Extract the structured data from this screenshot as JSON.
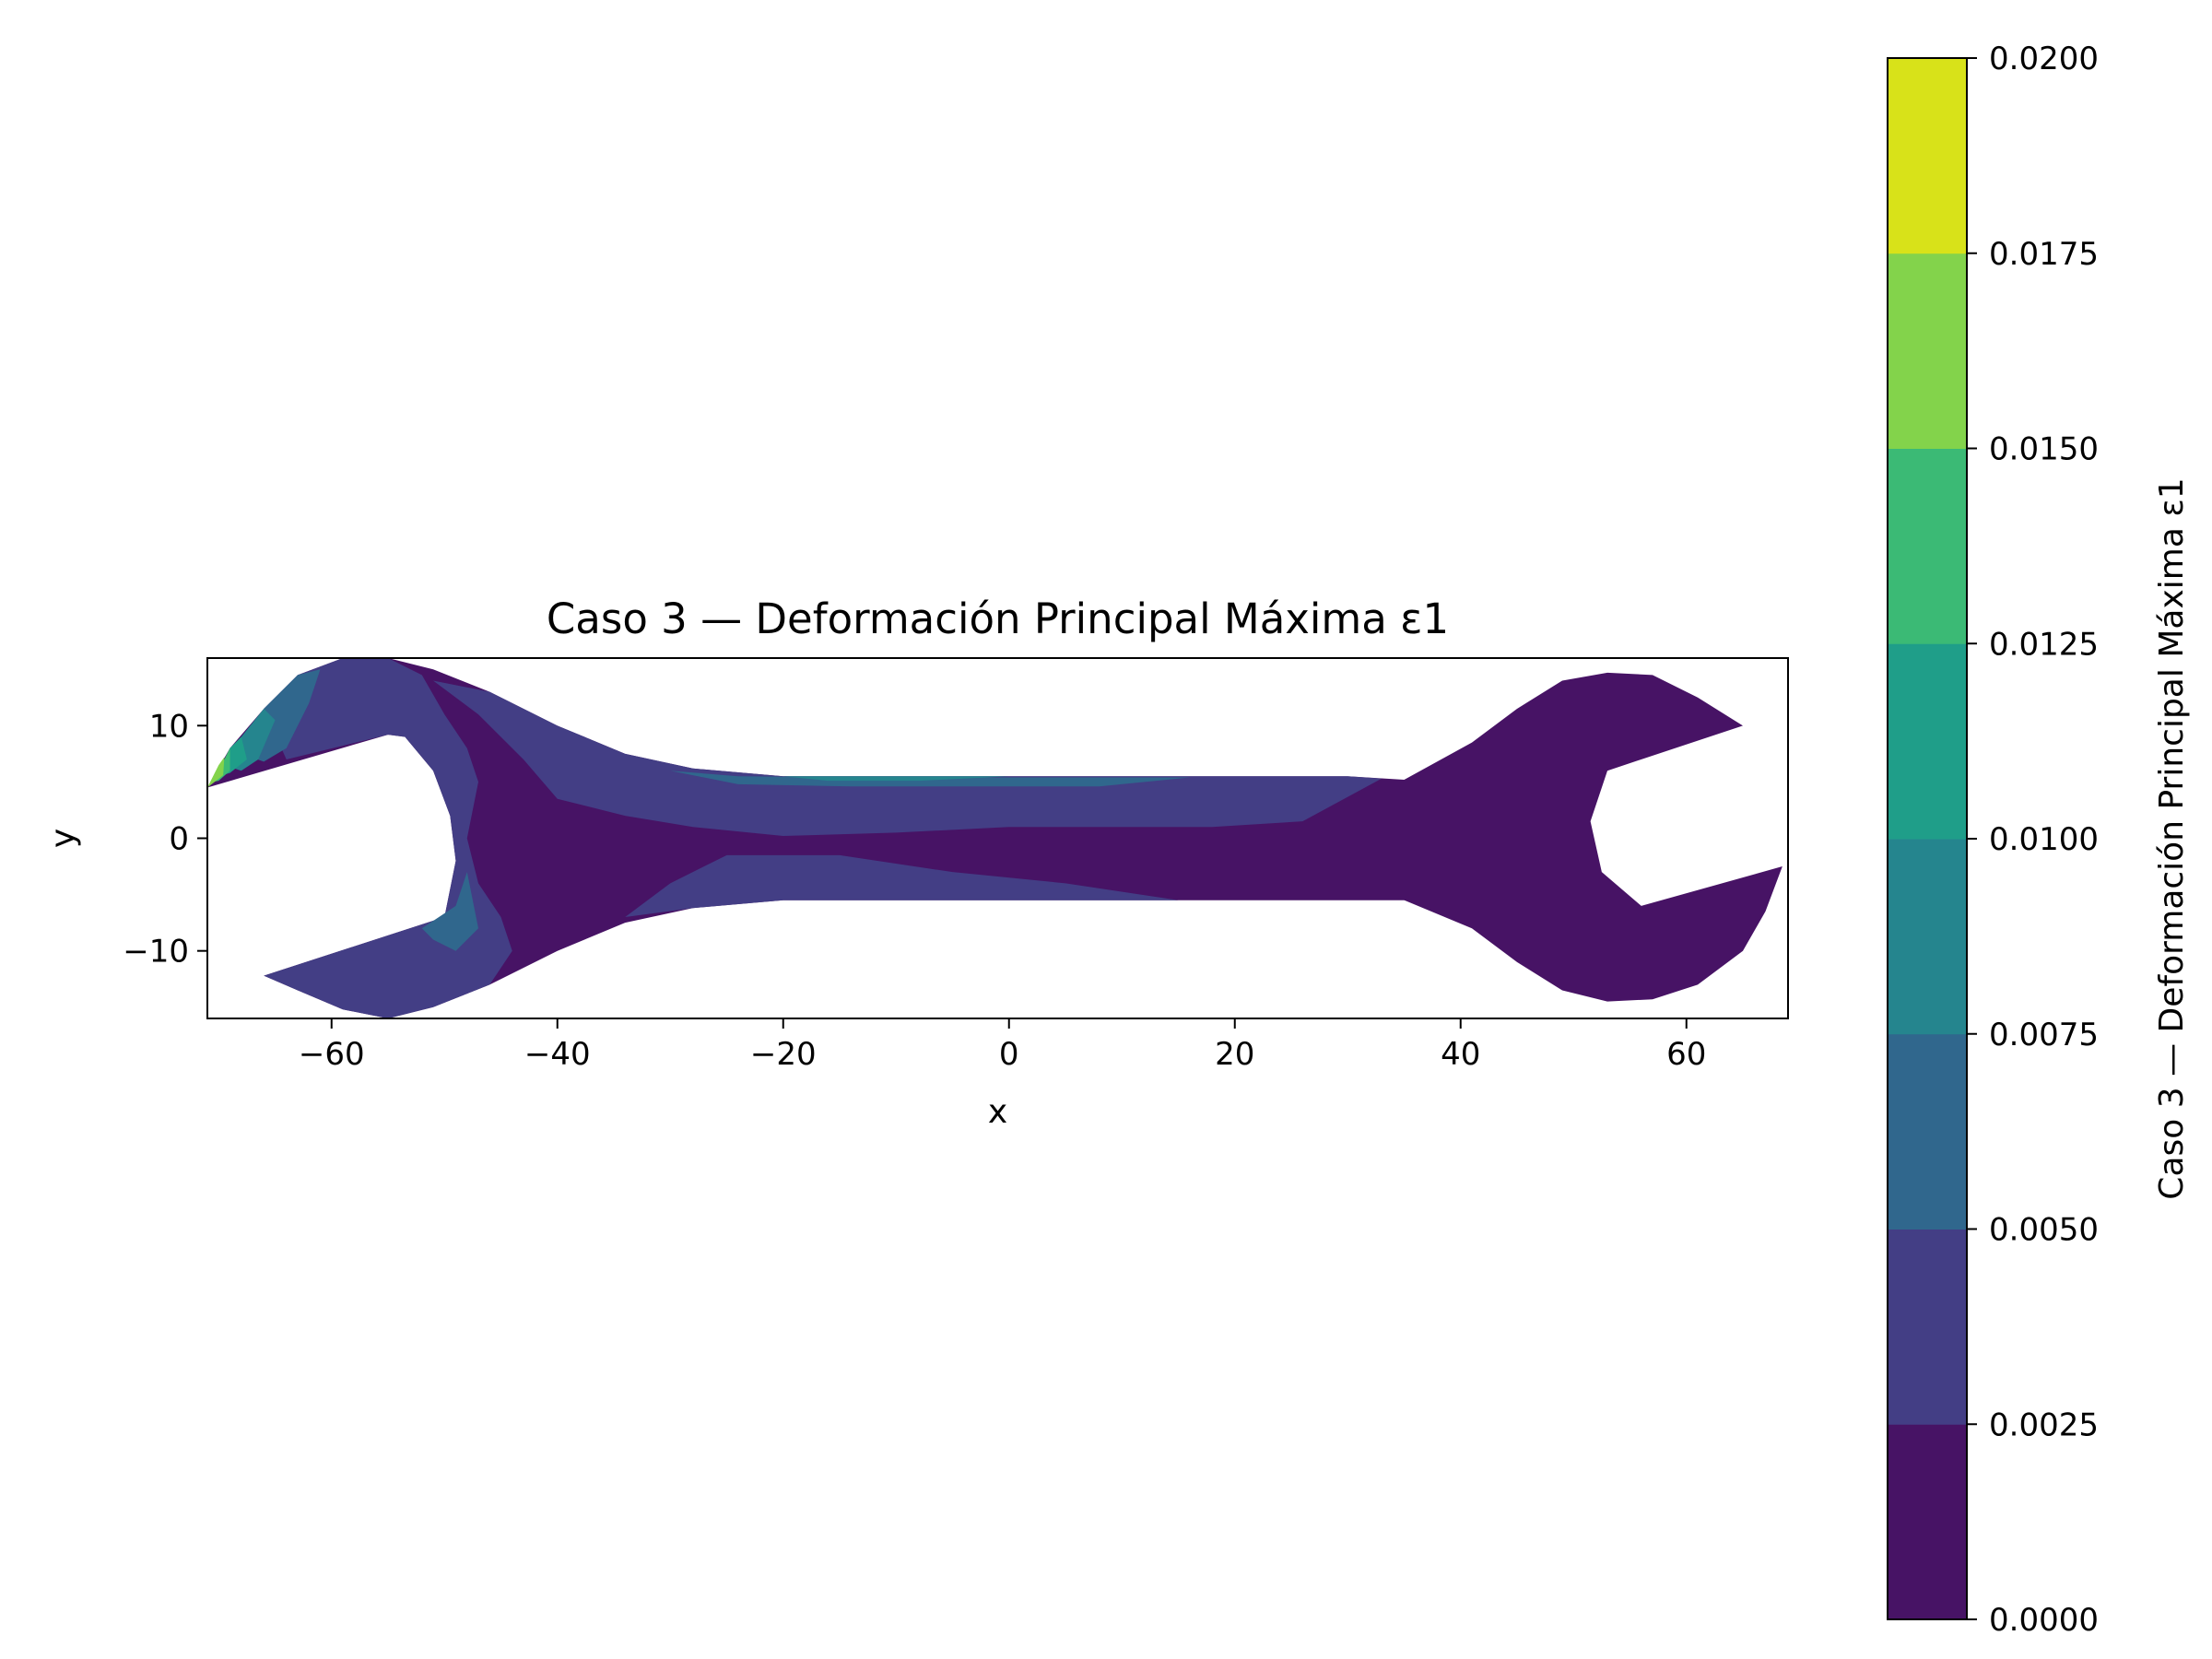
{
  "chart_data": {
    "type": "heatmap",
    "title": "Caso 3 — Deformación Principal Máxima ε1",
    "xlabel": "x",
    "ylabel": "y",
    "xlim": [
      -71,
      69
    ],
    "ylim": [
      -16,
      16
    ],
    "x_ticks": [
      -60,
      -40,
      -20,
      0,
      20,
      40,
      60
    ],
    "x_tick_labels": [
      "−60",
      "−40",
      "−20",
      "0",
      "20",
      "40",
      "60"
    ],
    "y_ticks": [
      10,
      0,
      -10
    ],
    "y_tick_labels": [
      "10",
      "0",
      "−10"
    ],
    "colorbar": {
      "label": "Caso 3 — Deformación Principal Máxima ε1",
      "levels": [
        0.0,
        0.0025,
        0.005,
        0.0075,
        0.01,
        0.0125,
        0.015,
        0.0175,
        0.02
      ],
      "tick_labels": [
        "0.0000",
        "0.0025",
        "0.0050",
        "0.0075",
        "0.0100",
        "0.0125",
        "0.0150",
        "0.0175",
        "0.0200"
      ],
      "colors": [
        "#471365",
        "#433e85",
        "#30678d",
        "#25858e",
        "#1f9e89",
        "#3bba75",
        "#83d34b",
        "#d8e219"
      ]
    },
    "regions": [
      {
        "name": "wrench-outline",
        "level": 0,
        "points": [
          [
            -71,
            4.5
          ],
          [
            -69,
            8
          ],
          [
            -66,
            11.5
          ],
          [
            -63,
            14.5
          ],
          [
            -59,
            16
          ],
          [
            -55,
            16
          ],
          [
            -51,
            15
          ],
          [
            -46,
            13
          ],
          [
            -40,
            10
          ],
          [
            -34,
            7.5
          ],
          [
            -28,
            6.2
          ],
          [
            -20,
            5.5
          ],
          [
            -10,
            5.5
          ],
          [
            0,
            5.5
          ],
          [
            10,
            5.5
          ],
          [
            20,
            5.5
          ],
          [
            30,
            5.5
          ],
          [
            35,
            5.2
          ],
          [
            41,
            8.5
          ],
          [
            45,
            11.5
          ],
          [
            49,
            14
          ],
          [
            53,
            14.7
          ],
          [
            57,
            14.5
          ],
          [
            61,
            12.5
          ],
          [
            65,
            10
          ],
          [
            53,
            6
          ],
          [
            51.5,
            1.5
          ],
          [
            52.5,
            -3
          ],
          [
            56,
            -6
          ],
          [
            68.5,
            -2.5
          ],
          [
            67,
            -6.5
          ],
          [
            65,
            -10
          ],
          [
            61,
            -13
          ],
          [
            57,
            -14.3
          ],
          [
            53,
            -14.5
          ],
          [
            49,
            -13.5
          ],
          [
            45,
            -11
          ],
          [
            41,
            -8
          ],
          [
            35,
            -5.5
          ],
          [
            30,
            -5.5
          ],
          [
            20,
            -5.5
          ],
          [
            10,
            -5.5
          ],
          [
            0,
            -5.5
          ],
          [
            -10,
            -5.5
          ],
          [
            -20,
            -5.5
          ],
          [
            -28,
            -6.2
          ],
          [
            -34,
            -7.5
          ],
          [
            -40,
            -10
          ],
          [
            -46,
            -13
          ],
          [
            -51,
            -15
          ],
          [
            -55,
            -16
          ],
          [
            -59,
            -15.2
          ],
          [
            -63,
            -13.5
          ],
          [
            -66,
            -12.2
          ],
          [
            -50,
            -7
          ],
          [
            -49,
            -2
          ],
          [
            -49.5,
            2
          ],
          [
            -51,
            6
          ],
          [
            -53.5,
            9
          ],
          [
            -55,
            9.2
          ]
        ]
      },
      {
        "name": "band-mid-upper",
        "level": 1,
        "points": [
          [
            -51,
            14
          ],
          [
            -46,
            13
          ],
          [
            -40,
            10
          ],
          [
            -34,
            7.5
          ],
          [
            -28,
            6.2
          ],
          [
            -20,
            5.5
          ],
          [
            -10,
            5.5
          ],
          [
            0,
            5.5
          ],
          [
            10,
            5.5
          ],
          [
            20,
            5.5
          ],
          [
            30,
            5.5
          ],
          [
            33,
            5.3
          ],
          [
            26,
            1.5
          ],
          [
            18,
            1
          ],
          [
            10,
            1
          ],
          [
            0,
            1
          ],
          [
            -10,
            0.5
          ],
          [
            -20,
            0.2
          ],
          [
            -28,
            1
          ],
          [
            -34,
            2
          ],
          [
            -40,
            3.5
          ],
          [
            -43,
            7
          ],
          [
            -47,
            11
          ]
        ]
      },
      {
        "name": "band-mid-lower",
        "level": 1,
        "points": [
          [
            -25,
            -1.5
          ],
          [
            -15,
            -1.5
          ],
          [
            -5,
            -3
          ],
          [
            5,
            -4
          ],
          [
            15,
            -5.5
          ],
          [
            -10,
            -5.5
          ],
          [
            -20,
            -5.5
          ],
          [
            -28,
            -6.2
          ],
          [
            -34,
            -7
          ],
          [
            -30,
            -4
          ]
        ]
      },
      {
        "name": "band-left-head",
        "level": 1,
        "points": [
          [
            -66,
            11.5
          ],
          [
            -63,
            14.5
          ],
          [
            -59,
            16
          ],
          [
            -55,
            16
          ],
          [
            -52,
            14.5
          ],
          [
            -50,
            11
          ],
          [
            -48,
            8
          ],
          [
            -47,
            5
          ],
          [
            -48,
            0
          ],
          [
            -47,
            -4
          ],
          [
            -45,
            -7
          ],
          [
            -44,
            -10
          ],
          [
            -46,
            -13
          ],
          [
            -51,
            -15
          ],
          [
            -55,
            -16
          ],
          [
            -59,
            -15.2
          ],
          [
            -63,
            -13.5
          ],
          [
            -66,
            -12.2
          ],
          [
            -50,
            -7
          ],
          [
            -49,
            -2
          ],
          [
            -49.5,
            2
          ],
          [
            -51,
            6
          ],
          [
            -53.5,
            9
          ],
          [
            -55,
            9.2
          ],
          [
            -64,
            7
          ]
        ]
      },
      {
        "name": "band-center-strip",
        "level": 2,
        "points": [
          [
            -30,
            6
          ],
          [
            -24,
            5.5
          ],
          [
            -14,
            5.4
          ],
          [
            -4,
            5.4
          ],
          [
            6,
            5.4
          ],
          [
            16,
            5.4
          ],
          [
            8,
            4.6
          ],
          [
            -4,
            4.6
          ],
          [
            -14,
            4.6
          ],
          [
            -24,
            4.8
          ]
        ]
      },
      {
        "name": "band-left-corner",
        "level": 2,
        "points": [
          [
            -68,
            7.5
          ],
          [
            -66,
            11.5
          ],
          [
            -63,
            14.5
          ],
          [
            -61,
            15
          ],
          [
            -62,
            12
          ],
          [
            -64,
            8
          ],
          [
            -66,
            6.8
          ]
        ]
      },
      {
        "name": "band-center-thin",
        "level": 3,
        "points": [
          [
            -20,
            5.5
          ],
          [
            -10,
            5.5
          ],
          [
            0,
            5.5
          ],
          [
            -8,
            5.1
          ],
          [
            -16,
            5.1
          ]
        ]
      },
      {
        "name": "band-left-tip-1",
        "level": 3,
        "points": [
          [
            -69.5,
            6.5
          ],
          [
            -68,
            9
          ],
          [
            -66,
            11.5
          ],
          [
            -65,
            10.5
          ],
          [
            -66.5,
            7
          ],
          [
            -68,
            6
          ]
        ]
      },
      {
        "name": "band-left-tip-2",
        "level": 4,
        "points": [
          [
            -70,
            5.5
          ],
          [
            -69,
            8
          ],
          [
            -68,
            9
          ],
          [
            -67.5,
            7
          ],
          [
            -69,
            5.8
          ]
        ]
      },
      {
        "name": "band-left-tip-3",
        "level": 5,
        "points": [
          [
            -70.5,
            5
          ],
          [
            -69.5,
            7
          ],
          [
            -69,
            8
          ],
          [
            -69,
            6
          ],
          [
            -70,
            5.1
          ]
        ]
      },
      {
        "name": "band-left-tip-4",
        "level": 6,
        "points": [
          [
            -71,
            4.5
          ],
          [
            -70,
            6.5
          ],
          [
            -69.5,
            7.2
          ],
          [
            -69.6,
            5.6
          ]
        ]
      },
      {
        "name": "band-left-lower-arc",
        "level": 2,
        "points": [
          [
            -52,
            -8
          ],
          [
            -49,
            -6
          ],
          [
            -48,
            -3
          ],
          [
            -47,
            -8
          ],
          [
            -49,
            -10
          ],
          [
            -51,
            -9
          ]
        ]
      }
    ]
  }
}
